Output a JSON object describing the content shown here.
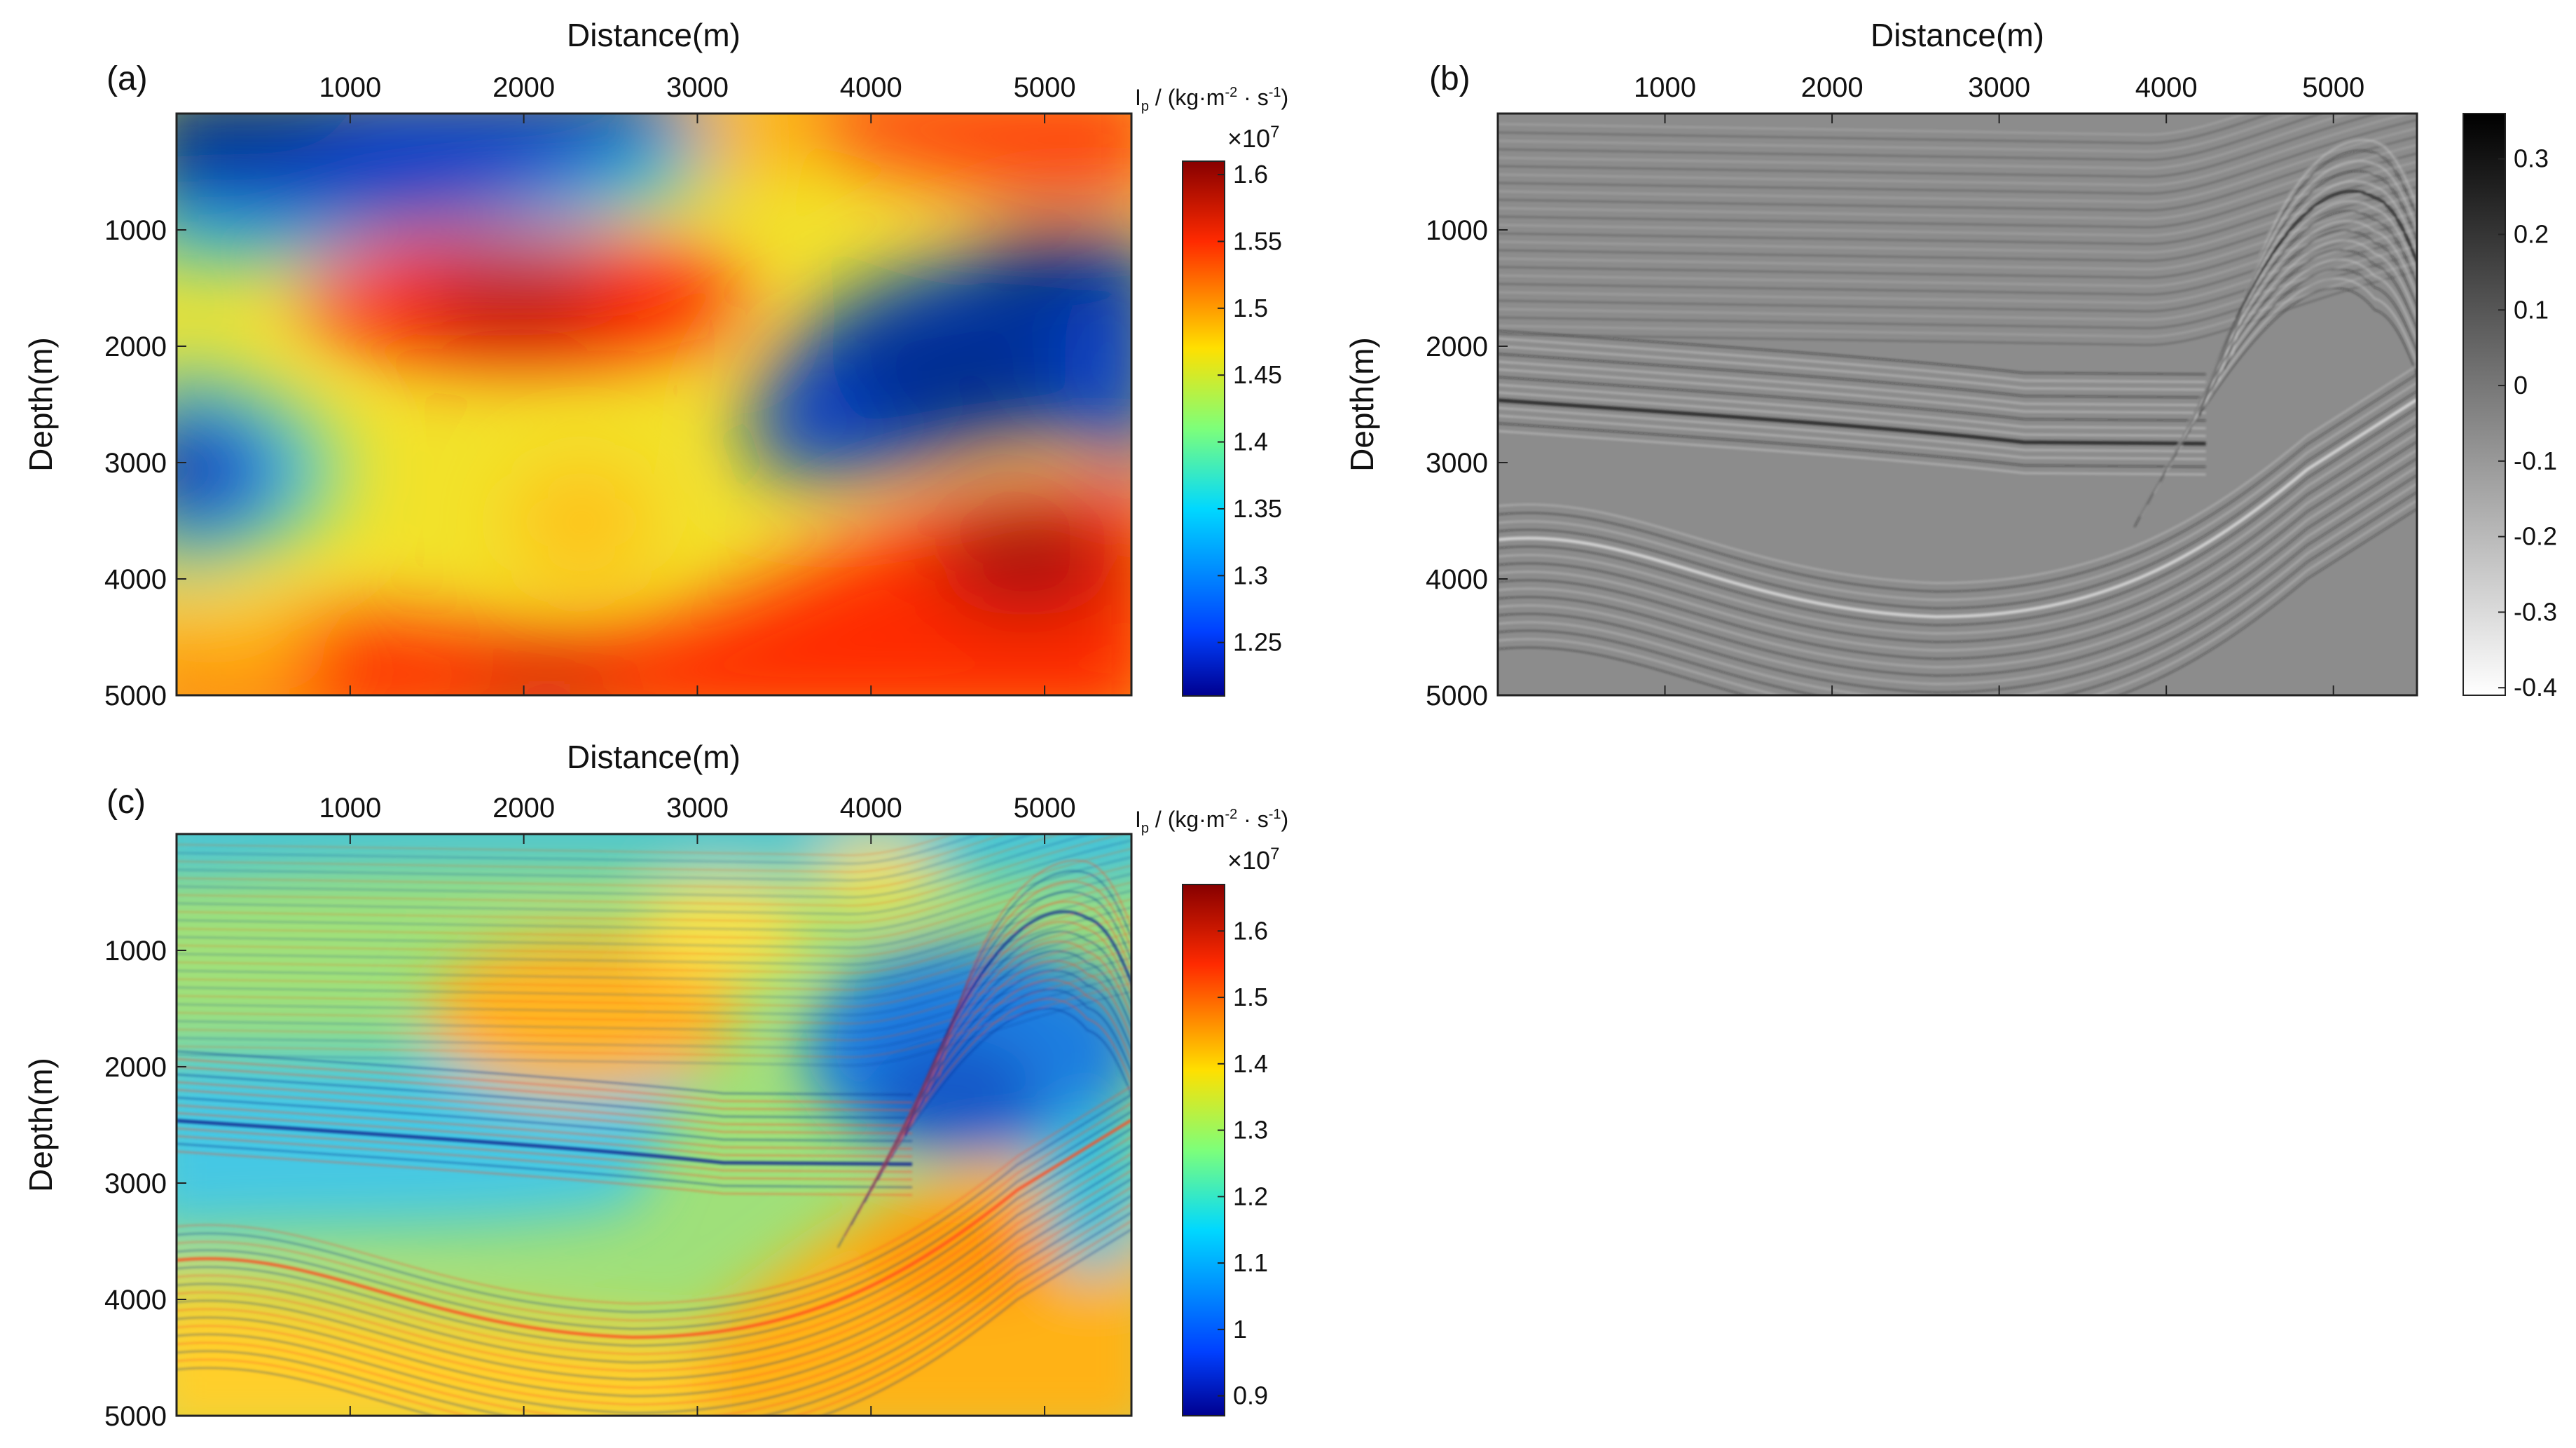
{
  "figure": {
    "panels": [
      "(a)",
      "(b)",
      "(c)"
    ]
  },
  "chart_data": [
    {
      "type": "heatmap",
      "panel": "(a)",
      "title": "",
      "xlabel": "Distance(m)",
      "ylabel": "Depth(m)",
      "xlim": [
        0,
        5500
      ],
      "ylim": [
        5000,
        0
      ],
      "x_ticks": [
        "1000",
        "2000",
        "3000",
        "4000",
        "5000"
      ],
      "y_ticks": [
        "1000",
        "2000",
        "3000",
        "4000",
        "5000"
      ],
      "colormap": "jet",
      "colorbar": {
        "label": "Ip / (kg·m⁻²·s⁻¹)",
        "label_main": "I",
        "label_sub": "p",
        "label_rest": " / (kg·m",
        "label_sup1": "-2",
        "label_mid": " · s",
        "label_sup2": "-1",
        "label_end": ")",
        "scale": "×10",
        "scale_exp": "7",
        "min": 1.21,
        "max": 1.61,
        "ticks": [
          "1.6",
          "1.55",
          "1.5",
          "1.45",
          "1.4",
          "1.35",
          "1.3",
          "1.25"
        ],
        "tick_values": [
          1.6,
          1.55,
          1.5,
          1.45,
          1.4,
          1.35,
          1.3,
          1.25
        ]
      },
      "features": [
        {
          "name": "high-impedance lens",
          "x": 1950,
          "depth": 1550,
          "value": 1.6
        },
        {
          "name": "low-impedance zone",
          "x": 4400,
          "depth": 1900,
          "value": 1.22
        },
        {
          "name": "low-impedance left",
          "x": 150,
          "depth": 3000,
          "value": 1.24
        },
        {
          "name": "high-impedance bottom right",
          "x": 4900,
          "depth": 3800,
          "value": 1.6
        },
        {
          "name": "high-impedance basal layer",
          "x": 2000,
          "depth": 4850,
          "value": 1.58
        }
      ]
    },
    {
      "type": "heatmap",
      "panel": "(b)",
      "title": "",
      "xlabel": "Distance(m)",
      "ylabel": "Depth(m)",
      "xlim": [
        0,
        5500
      ],
      "ylim": [
        5000,
        0
      ],
      "x_ticks": [
        "1000",
        "2000",
        "3000",
        "4000",
        "5000"
      ],
      "y_ticks": [
        "1000",
        "2000",
        "3000",
        "4000",
        "5000"
      ],
      "colormap": "gray",
      "colorbar": {
        "min": -0.41,
        "max": 0.36,
        "ticks": [
          "0.3",
          "0.2",
          "0.1",
          "0",
          "-0.1",
          "-0.2",
          "-0.3",
          "-0.4"
        ],
        "tick_values": [
          0.3,
          0.2,
          0.1,
          0,
          -0.1,
          -0.2,
          -0.3,
          -0.4
        ]
      }
    },
    {
      "type": "heatmap",
      "panel": "(c)",
      "title": "",
      "xlabel": "Distance(m)",
      "ylabel": "Depth(m)",
      "xlim": [
        0,
        5500
      ],
      "ylim": [
        5000,
        0
      ],
      "x_ticks": [
        "1000",
        "2000",
        "3000",
        "4000",
        "5000"
      ],
      "y_ticks": [
        "1000",
        "2000",
        "3000",
        "4000",
        "5000"
      ],
      "colormap": "jet",
      "colorbar": {
        "label_main": "I",
        "label_sub": "p",
        "label_rest": " / (kg·m",
        "label_sup1": "-2",
        "label_mid": " · s",
        "label_sup2": "-1",
        "label_end": ")",
        "scale": "×10",
        "scale_exp": "7",
        "min": 0.87,
        "max": 1.67,
        "ticks": [
          "1.6",
          "1.5",
          "1.4",
          "1.3",
          "1.2",
          "1.1",
          "1",
          "0.9"
        ],
        "tick_values": [
          1.6,
          1.5,
          1.4,
          1.3,
          1.2,
          1.1,
          1.0,
          0.9
        ]
      }
    }
  ]
}
